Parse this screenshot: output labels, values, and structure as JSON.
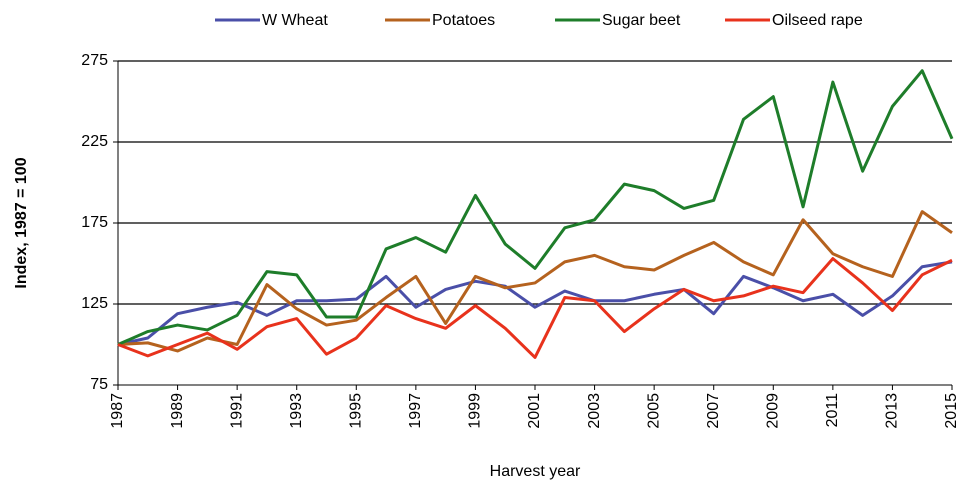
{
  "chart_data": {
    "type": "line",
    "x_label": "Harvest year",
    "y_label": "Index, 1987 = 100",
    "x": [
      1987,
      1988,
      1989,
      1990,
      1991,
      1992,
      1993,
      1994,
      1995,
      1996,
      1997,
      1998,
      1999,
      2000,
      2001,
      2002,
      2003,
      2004,
      2005,
      2006,
      2007,
      2008,
      2009,
      2010,
      2011,
      2012,
      2013,
      2014,
      2015
    ],
    "xlim": [
      1987,
      2015
    ],
    "xticks": [
      1987,
      1989,
      1991,
      1993,
      1995,
      1997,
      1999,
      2001,
      2003,
      2005,
      2007,
      2009,
      2011,
      2013,
      2015
    ],
    "ylim": [
      75,
      275
    ],
    "yticks": [
      75,
      125,
      175,
      225,
      275
    ],
    "grid": true,
    "legend": "top",
    "series": [
      {
        "name": "W Wheat",
        "color": "#4a4fa8",
        "values": [
          100,
          104,
          119,
          123,
          126,
          118,
          127,
          127,
          128,
          142,
          123,
          134,
          139,
          136,
          123,
          133,
          127,
          127,
          131,
          134,
          119,
          142,
          135,
          127,
          131,
          118,
          130,
          148,
          151
        ]
      },
      {
        "name": "Potatoes",
        "color": "#b5621e",
        "values": [
          100,
          101,
          96,
          104,
          100,
          137,
          122,
          112,
          115,
          129,
          142,
          113,
          142,
          135,
          138,
          151,
          155,
          148,
          146,
          155,
          163,
          151,
          143,
          177,
          156,
          148,
          142,
          182,
          169
        ]
      },
      {
        "name": "Sugar beet",
        "color": "#1e7d2a",
        "values": [
          100,
          108,
          112,
          109,
          118,
          145,
          143,
          117,
          117,
          159,
          166,
          157,
          192,
          162,
          147,
          172,
          177,
          199,
          195,
          184,
          189,
          239,
          253,
          185,
          262,
          207,
          247,
          269,
          227
        ]
      },
      {
        "name": "Oilseed rape",
        "color": "#e8321c",
        "values": [
          100,
          93,
          100,
          107,
          97,
          111,
          116,
          94,
          104,
          124,
          116,
          110,
          124,
          110,
          92,
          129,
          127,
          108,
          122,
          134,
          127,
          130,
          136,
          132,
          153,
          138,
          121,
          143,
          152
        ]
      }
    ]
  }
}
